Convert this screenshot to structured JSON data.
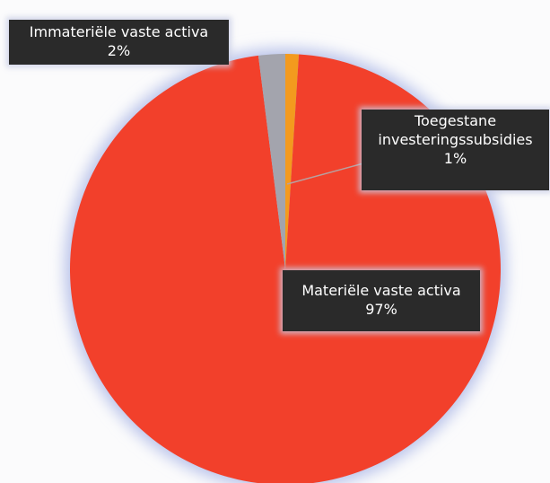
{
  "chart_data": {
    "type": "pie",
    "categories": [
      "Toegestane investeringssubsidies",
      "Materiële vaste activa",
      "Immateriële vaste activa"
    ],
    "values": [
      1,
      97,
      2
    ],
    "value_labels": [
      "1%",
      "97%",
      "2%"
    ],
    "colors": [
      "#f39a1e",
      "#f2402b",
      "#a3a4ad"
    ]
  }
}
